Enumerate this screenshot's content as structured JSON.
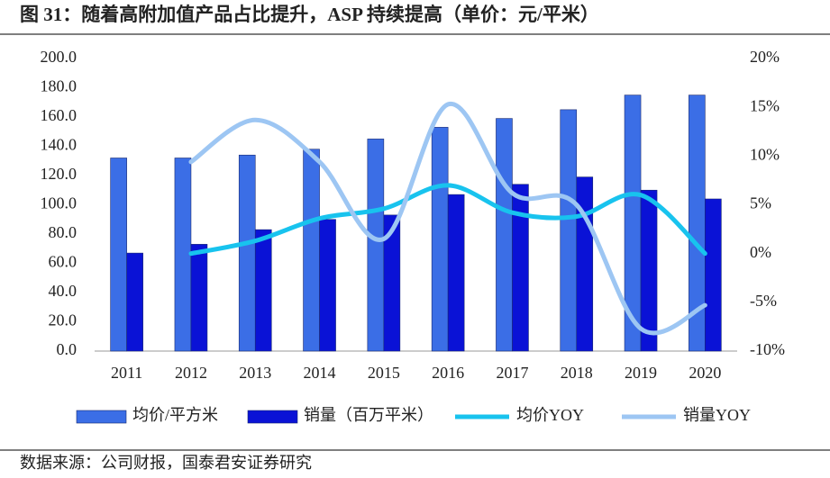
{
  "chart_data": {
    "type": "bar",
    "title": "图 31：随着高附加值产品占比提升，ASP 持续提高（单价：元/平米）",
    "source": "数据来源：公司财报，国泰君安证券研究",
    "categories": [
      "2011",
      "2012",
      "2013",
      "2014",
      "2015",
      "2016",
      "2017",
      "2018",
      "2019",
      "2020"
    ],
    "series": [
      {
        "name": "均价/平方米",
        "type": "bar",
        "color": "#3b6ee6",
        "values": [
          132,
          132,
          134,
          138,
          145,
          153,
          159,
          165,
          175,
          175
        ]
      },
      {
        "name": "销量（百万平米）",
        "type": "bar",
        "color": "#0a12d6",
        "values": [
          67,
          73,
          83,
          90,
          93,
          107,
          114,
          119,
          110,
          104
        ]
      },
      {
        "name": "均价YOY",
        "type": "line",
        "axis": "y2",
        "color": "#18c3ee",
        "values": [
          null,
          0,
          1.3,
          3.6,
          4.6,
          7.0,
          4.2,
          3.8,
          6.0,
          0
        ]
      },
      {
        "name": "销量YOY",
        "type": "line",
        "axis": "y2",
        "color": "#9dc6f3",
        "values": [
          null,
          9.4,
          13.7,
          9.4,
          1.5,
          15.3,
          6.2,
          5.0,
          -7.7,
          -5.3
        ]
      }
    ],
    "ylim": [
      0,
      200
    ],
    "yticks": [
      {
        "value": 0,
        "label": "0.0"
      },
      {
        "value": 20,
        "label": "20.0"
      },
      {
        "value": 40,
        "label": "40.0"
      },
      {
        "value": 60,
        "label": "60.0"
      },
      {
        "value": 80,
        "label": "80.0"
      },
      {
        "value": 100,
        "label": "100.0"
      },
      {
        "value": 120,
        "label": "120.0"
      },
      {
        "value": 140,
        "label": "140.0"
      },
      {
        "value": 160,
        "label": "160.0"
      },
      {
        "value": 180,
        "label": "180.0"
      },
      {
        "value": 200,
        "label": "200.0"
      }
    ],
    "y2lim": [
      -10,
      20
    ],
    "y2ticks": [
      {
        "value": -10,
        "label": "-10%"
      },
      {
        "value": -5,
        "label": "-5%"
      },
      {
        "value": 0,
        "label": "0%"
      },
      {
        "value": 5,
        "label": "5%"
      },
      {
        "value": 10,
        "label": "10%"
      },
      {
        "value": 15,
        "label": "15%"
      },
      {
        "value": 20,
        "label": "20%"
      }
    ],
    "grid": false
  }
}
